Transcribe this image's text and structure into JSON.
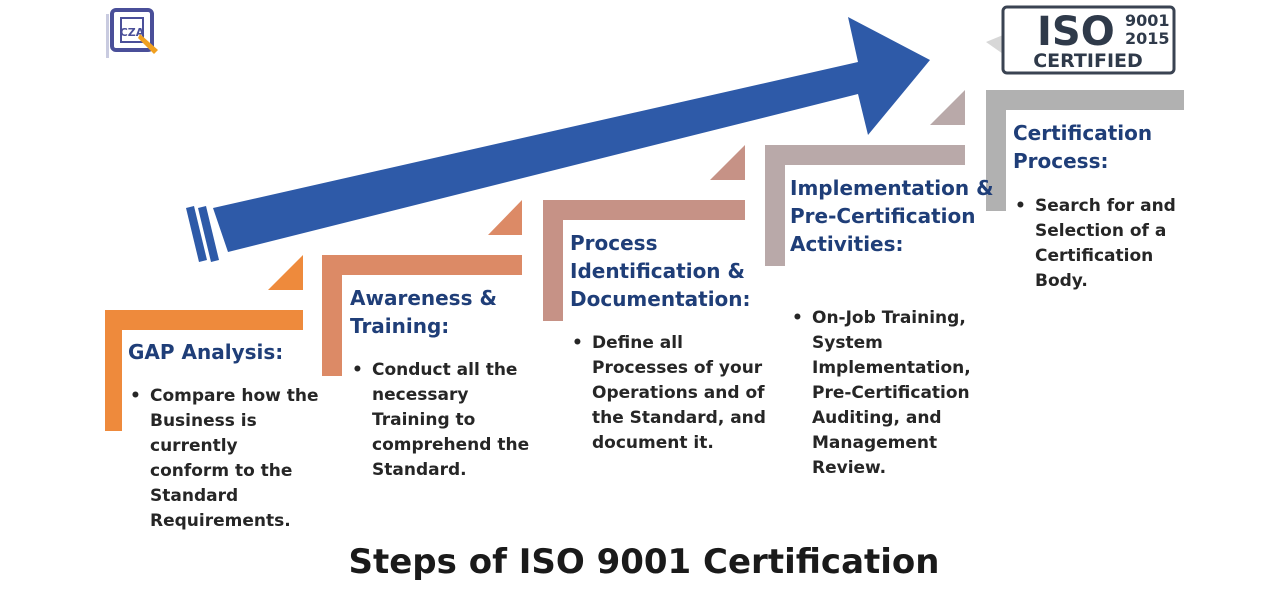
{
  "logo": {
    "letters": "CZA",
    "icon": "company-logo"
  },
  "badge": {
    "iso": "ISO",
    "year1": "9001",
    "year2": "2015",
    "certified": "CERTIFIED",
    "icon": "checkmark-icon"
  },
  "colors": {
    "arrow": "#2e5aa8",
    "step1": "#ee8a3c",
    "step2": "#dc8a66",
    "step3": "#c69286",
    "step4": "#b9a9a9",
    "step5": "#b1b1b1",
    "title": "#1f3e78"
  },
  "steps": [
    {
      "title": "GAP Analysis:",
      "bullets": [
        "Compare how the Business is currently conform to the Standard Requirements."
      ]
    },
    {
      "title": "Awareness & Training:",
      "bullets": [
        "Conduct all the necessary Training to comprehend the Standard."
      ]
    },
    {
      "title": "Process Identification & Documentation:",
      "bullets": [
        "Define all Processes of your Operations and of the Standard, and document it."
      ]
    },
    {
      "title": "Implementation & Pre-Certification Activities:",
      "bullets": [
        "On-Job Training, System Implementation, Pre-Certification Auditing, and Management Review."
      ]
    },
    {
      "title": "Certification Process:",
      "bullets": [
        "Search for and Selection of a Certification Body."
      ]
    }
  ],
  "caption": "Steps of ISO 9001 Certification"
}
